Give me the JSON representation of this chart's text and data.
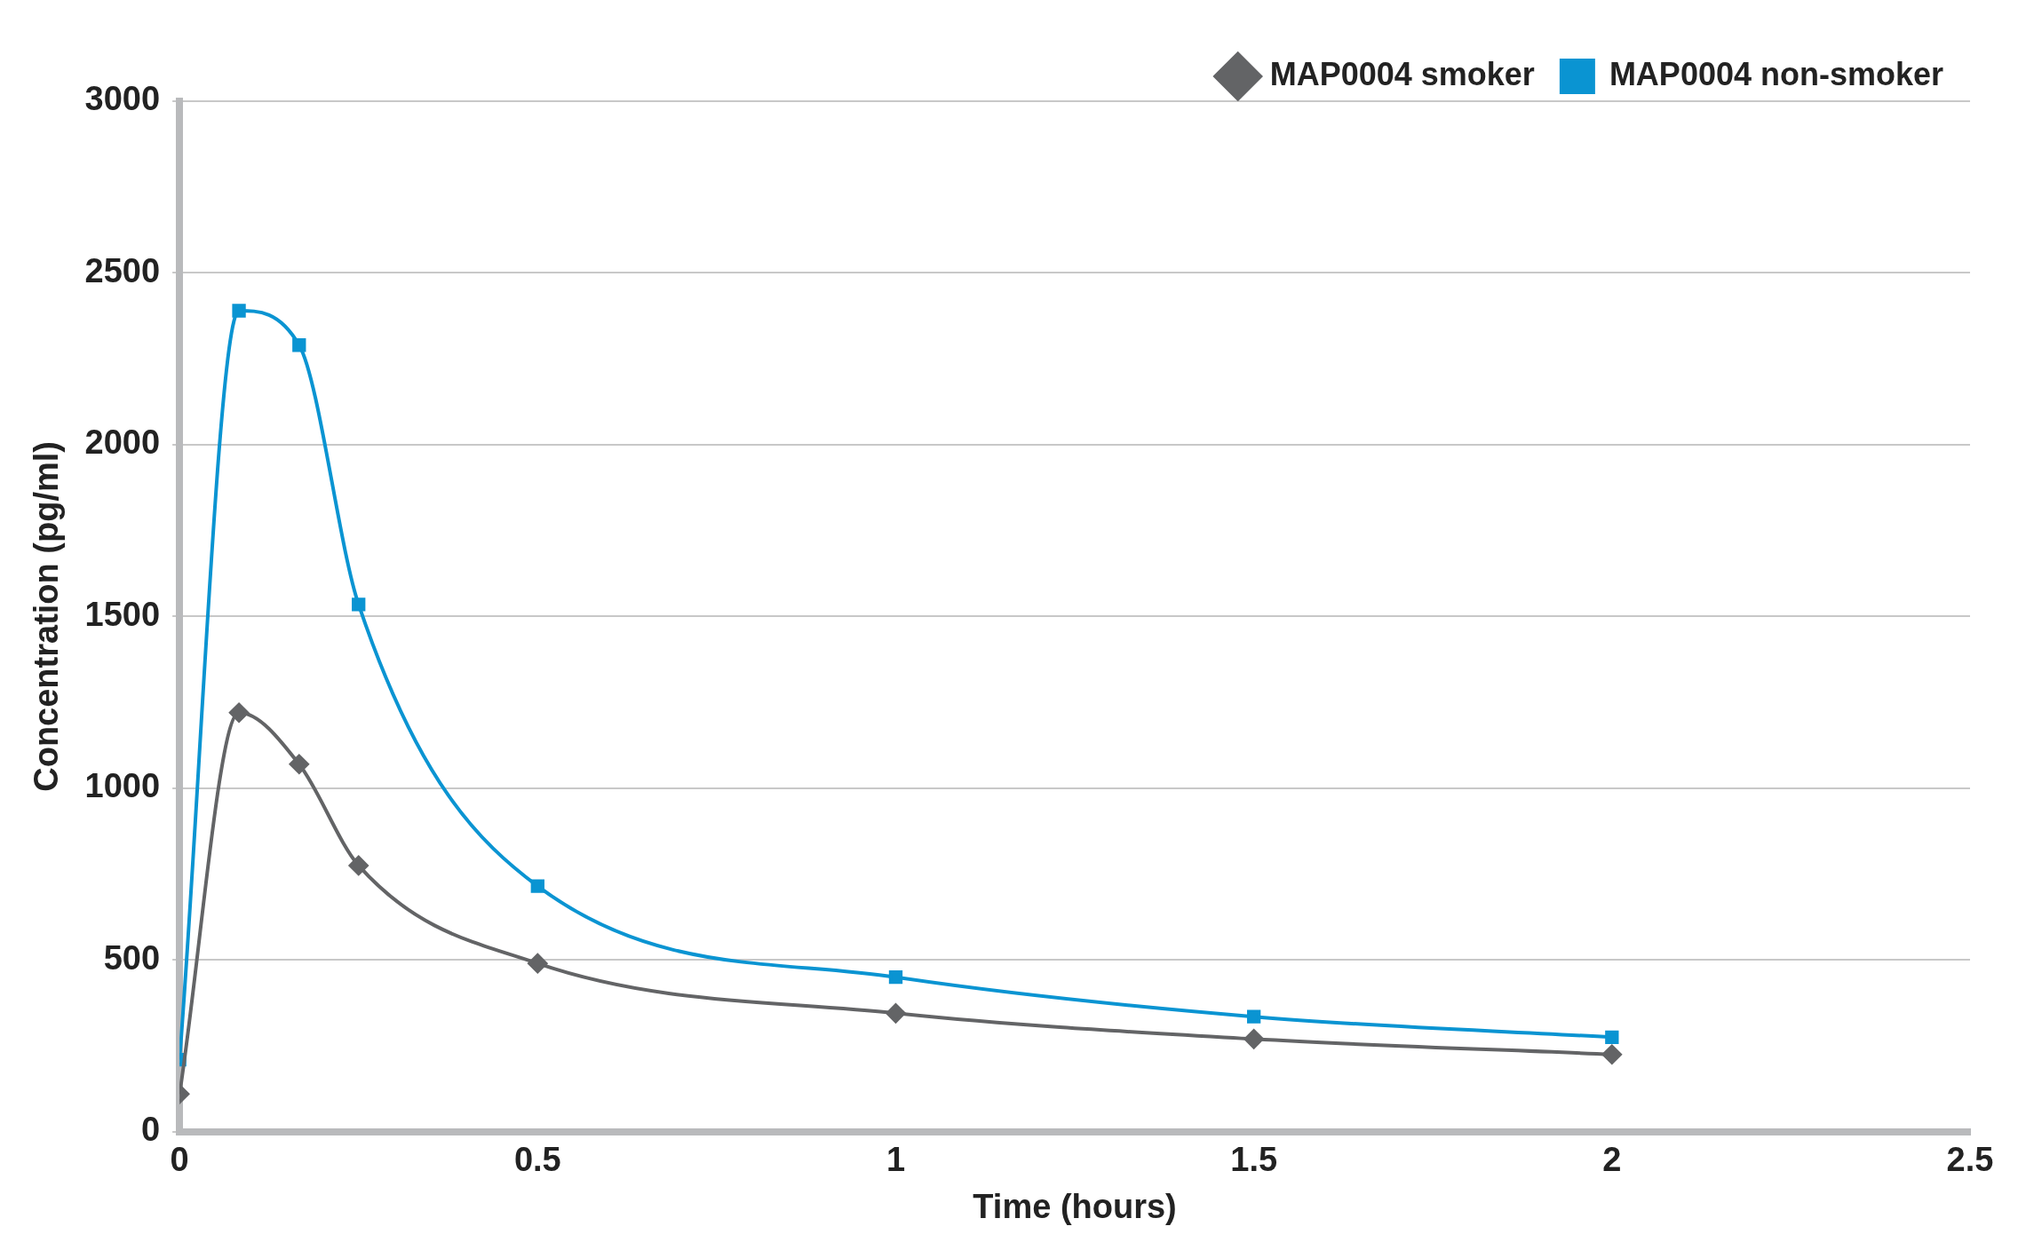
{
  "chart_data": {
    "type": "line",
    "xlabel": "Time (hours)",
    "ylabel": "Concentration (pg/ml)",
    "xlim": [
      0,
      2.5
    ],
    "xticks": [
      0,
      0.5,
      1,
      1.5,
      2,
      2.5
    ],
    "ylim": [
      0,
      3000
    ],
    "yticks": [
      0,
      500,
      1000,
      1500,
      2000,
      2500,
      3000
    ],
    "grid": "y",
    "legend": "top right",
    "line_style": "solid",
    "x": [
      0,
      0.083,
      0.167,
      0.25,
      0.5,
      1,
      1.5,
      2
    ],
    "series": [
      {
        "name": "MAP0004 smoker",
        "color": "#636466",
        "marker": "diamond",
        "values": [
          110,
          1220,
          1070,
          775,
          490,
          345,
          270,
          225
        ]
      },
      {
        "name": "MAP0004 non-smoker",
        "color": "#0a94d2",
        "marker": "square",
        "values": [
          210,
          2390,
          2290,
          1535,
          715,
          450,
          335,
          275
        ]
      }
    ]
  }
}
